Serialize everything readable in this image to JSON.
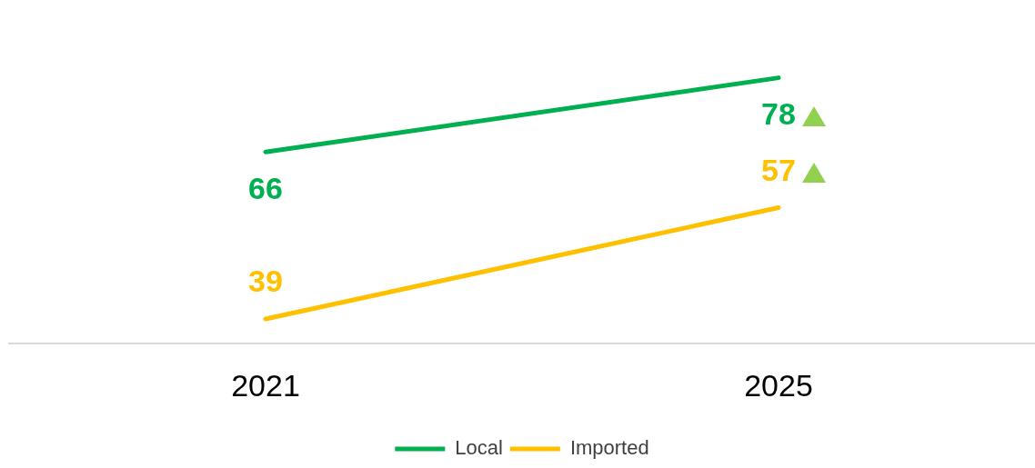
{
  "chart_data": {
    "type": "line",
    "categories": [
      "2021",
      "2025"
    ],
    "series": [
      {
        "name": "Local",
        "color": "#00b050",
        "values": [
          66,
          78
        ]
      },
      {
        "name": "Imported",
        "color": "#ffc000",
        "values": [
          39,
          57
        ]
      }
    ],
    "data_labels": true,
    "legend": "bottom",
    "grid": false,
    "marker": "none",
    "line_style": "solid",
    "tick_labels": "x"
  }
}
